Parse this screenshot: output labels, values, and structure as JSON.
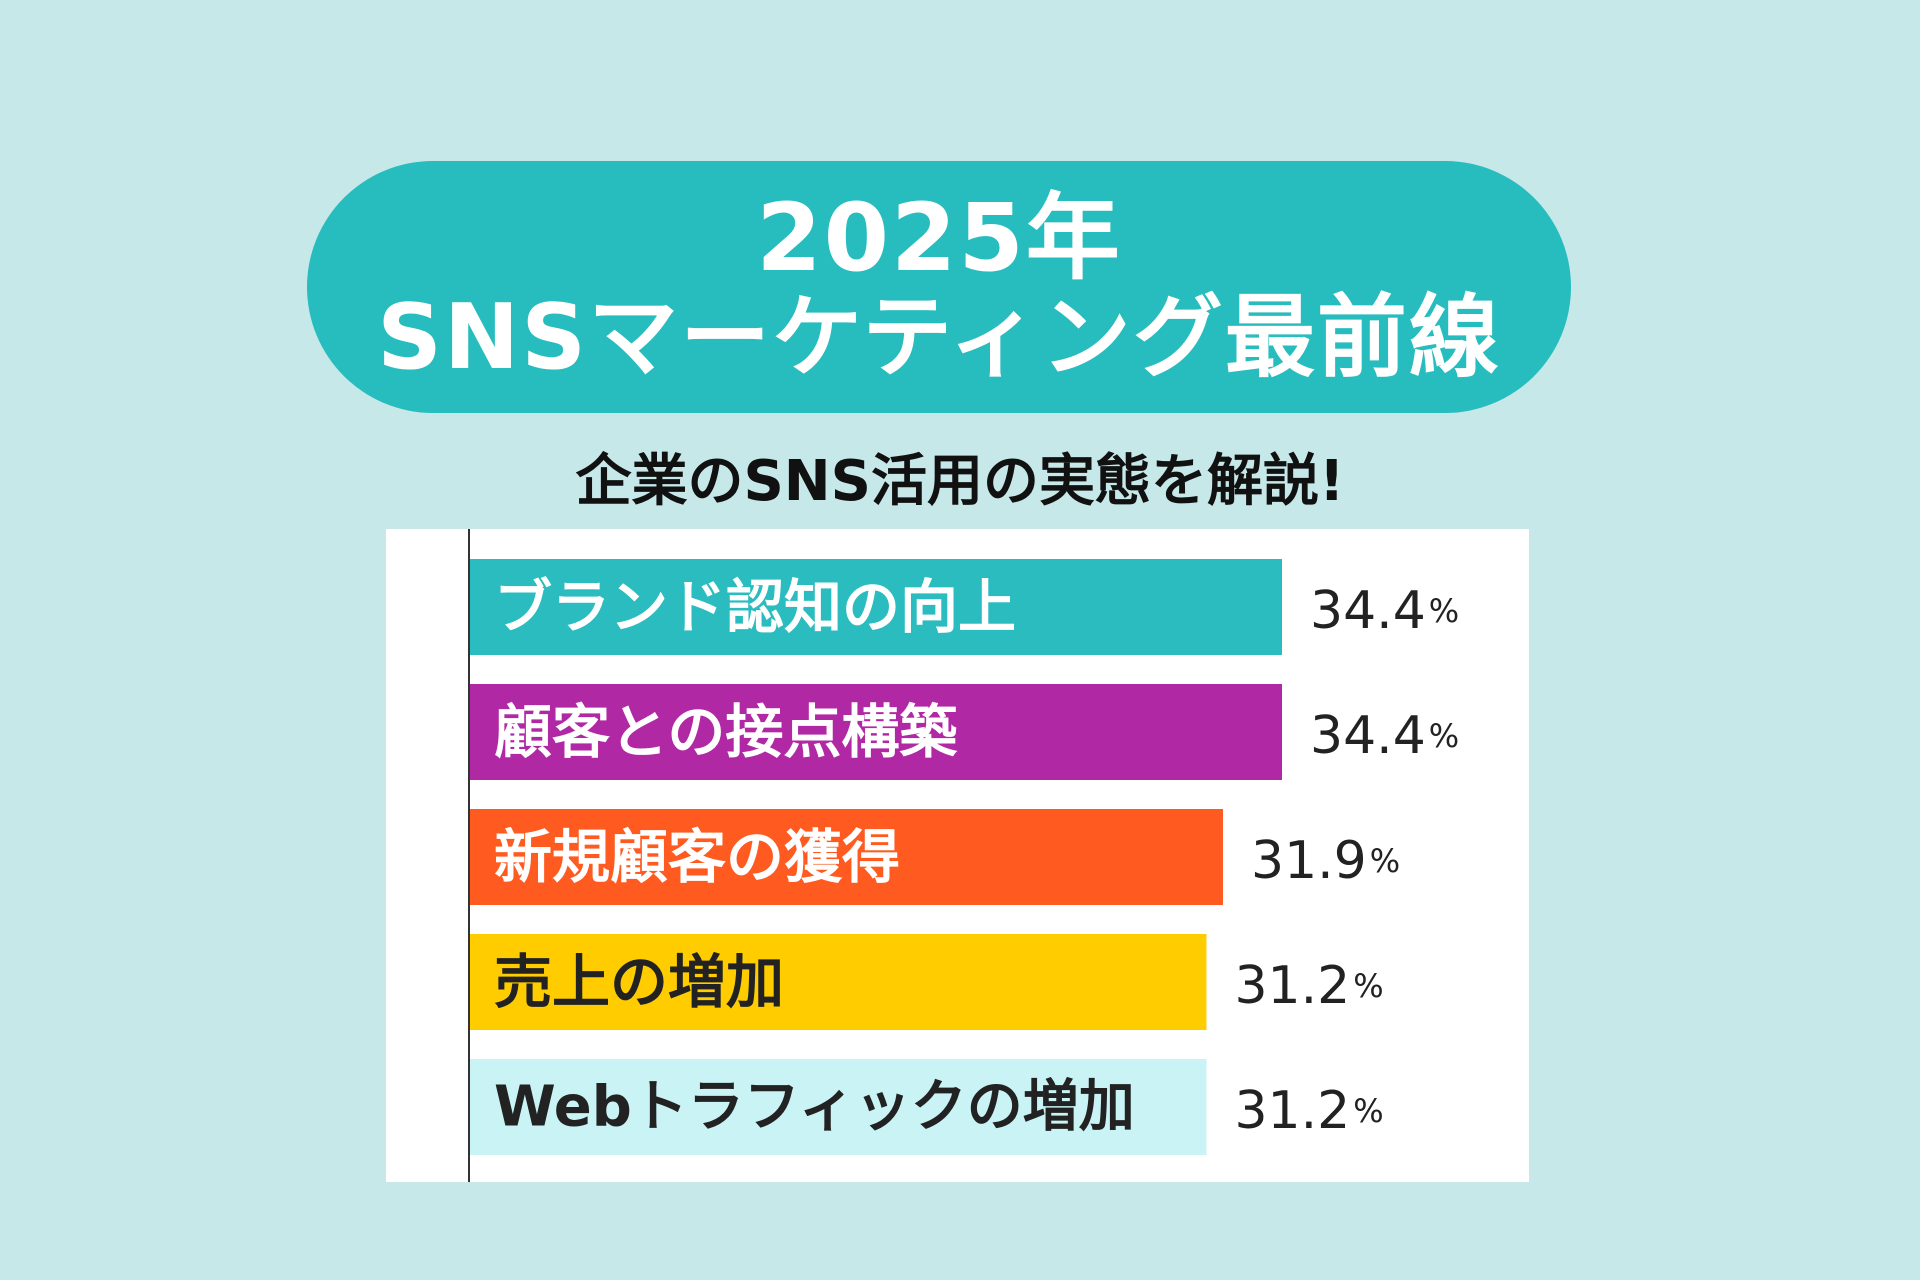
{
  "header": {
    "title_line1": "2025年",
    "title_line2": "SNSマーケティング最前線",
    "subtitle": "企業のSNS活用の実態を解説!"
  },
  "colors": {
    "background": "#c6e8e9",
    "title_pill": "#27bcbe"
  },
  "chart_data": {
    "type": "bar",
    "orientation": "horizontal",
    "categories": [
      "ブランド認知の向上",
      "顧客との接点構築",
      "新規顧客の獲得",
      "売上の増加",
      "Webトラフィックの増加"
    ],
    "values": [
      34.4,
      34.4,
      31.9,
      31.2,
      31.2
    ],
    "value_labels": [
      "34.4",
      "34.4",
      "31.9",
      "31.2",
      "31.2"
    ],
    "unit": "%",
    "bar_colors": [
      "#2bbcbf",
      "#b128a4",
      "#ff5b21",
      "#ffcc00",
      "#c9f3f5"
    ],
    "label_colors": [
      "#ffffff",
      "#ffffff",
      "#ffffff",
      "#222222",
      "#222222"
    ],
    "xlim": [
      0,
      34.4
    ],
    "grid": false,
    "legend": "none"
  }
}
